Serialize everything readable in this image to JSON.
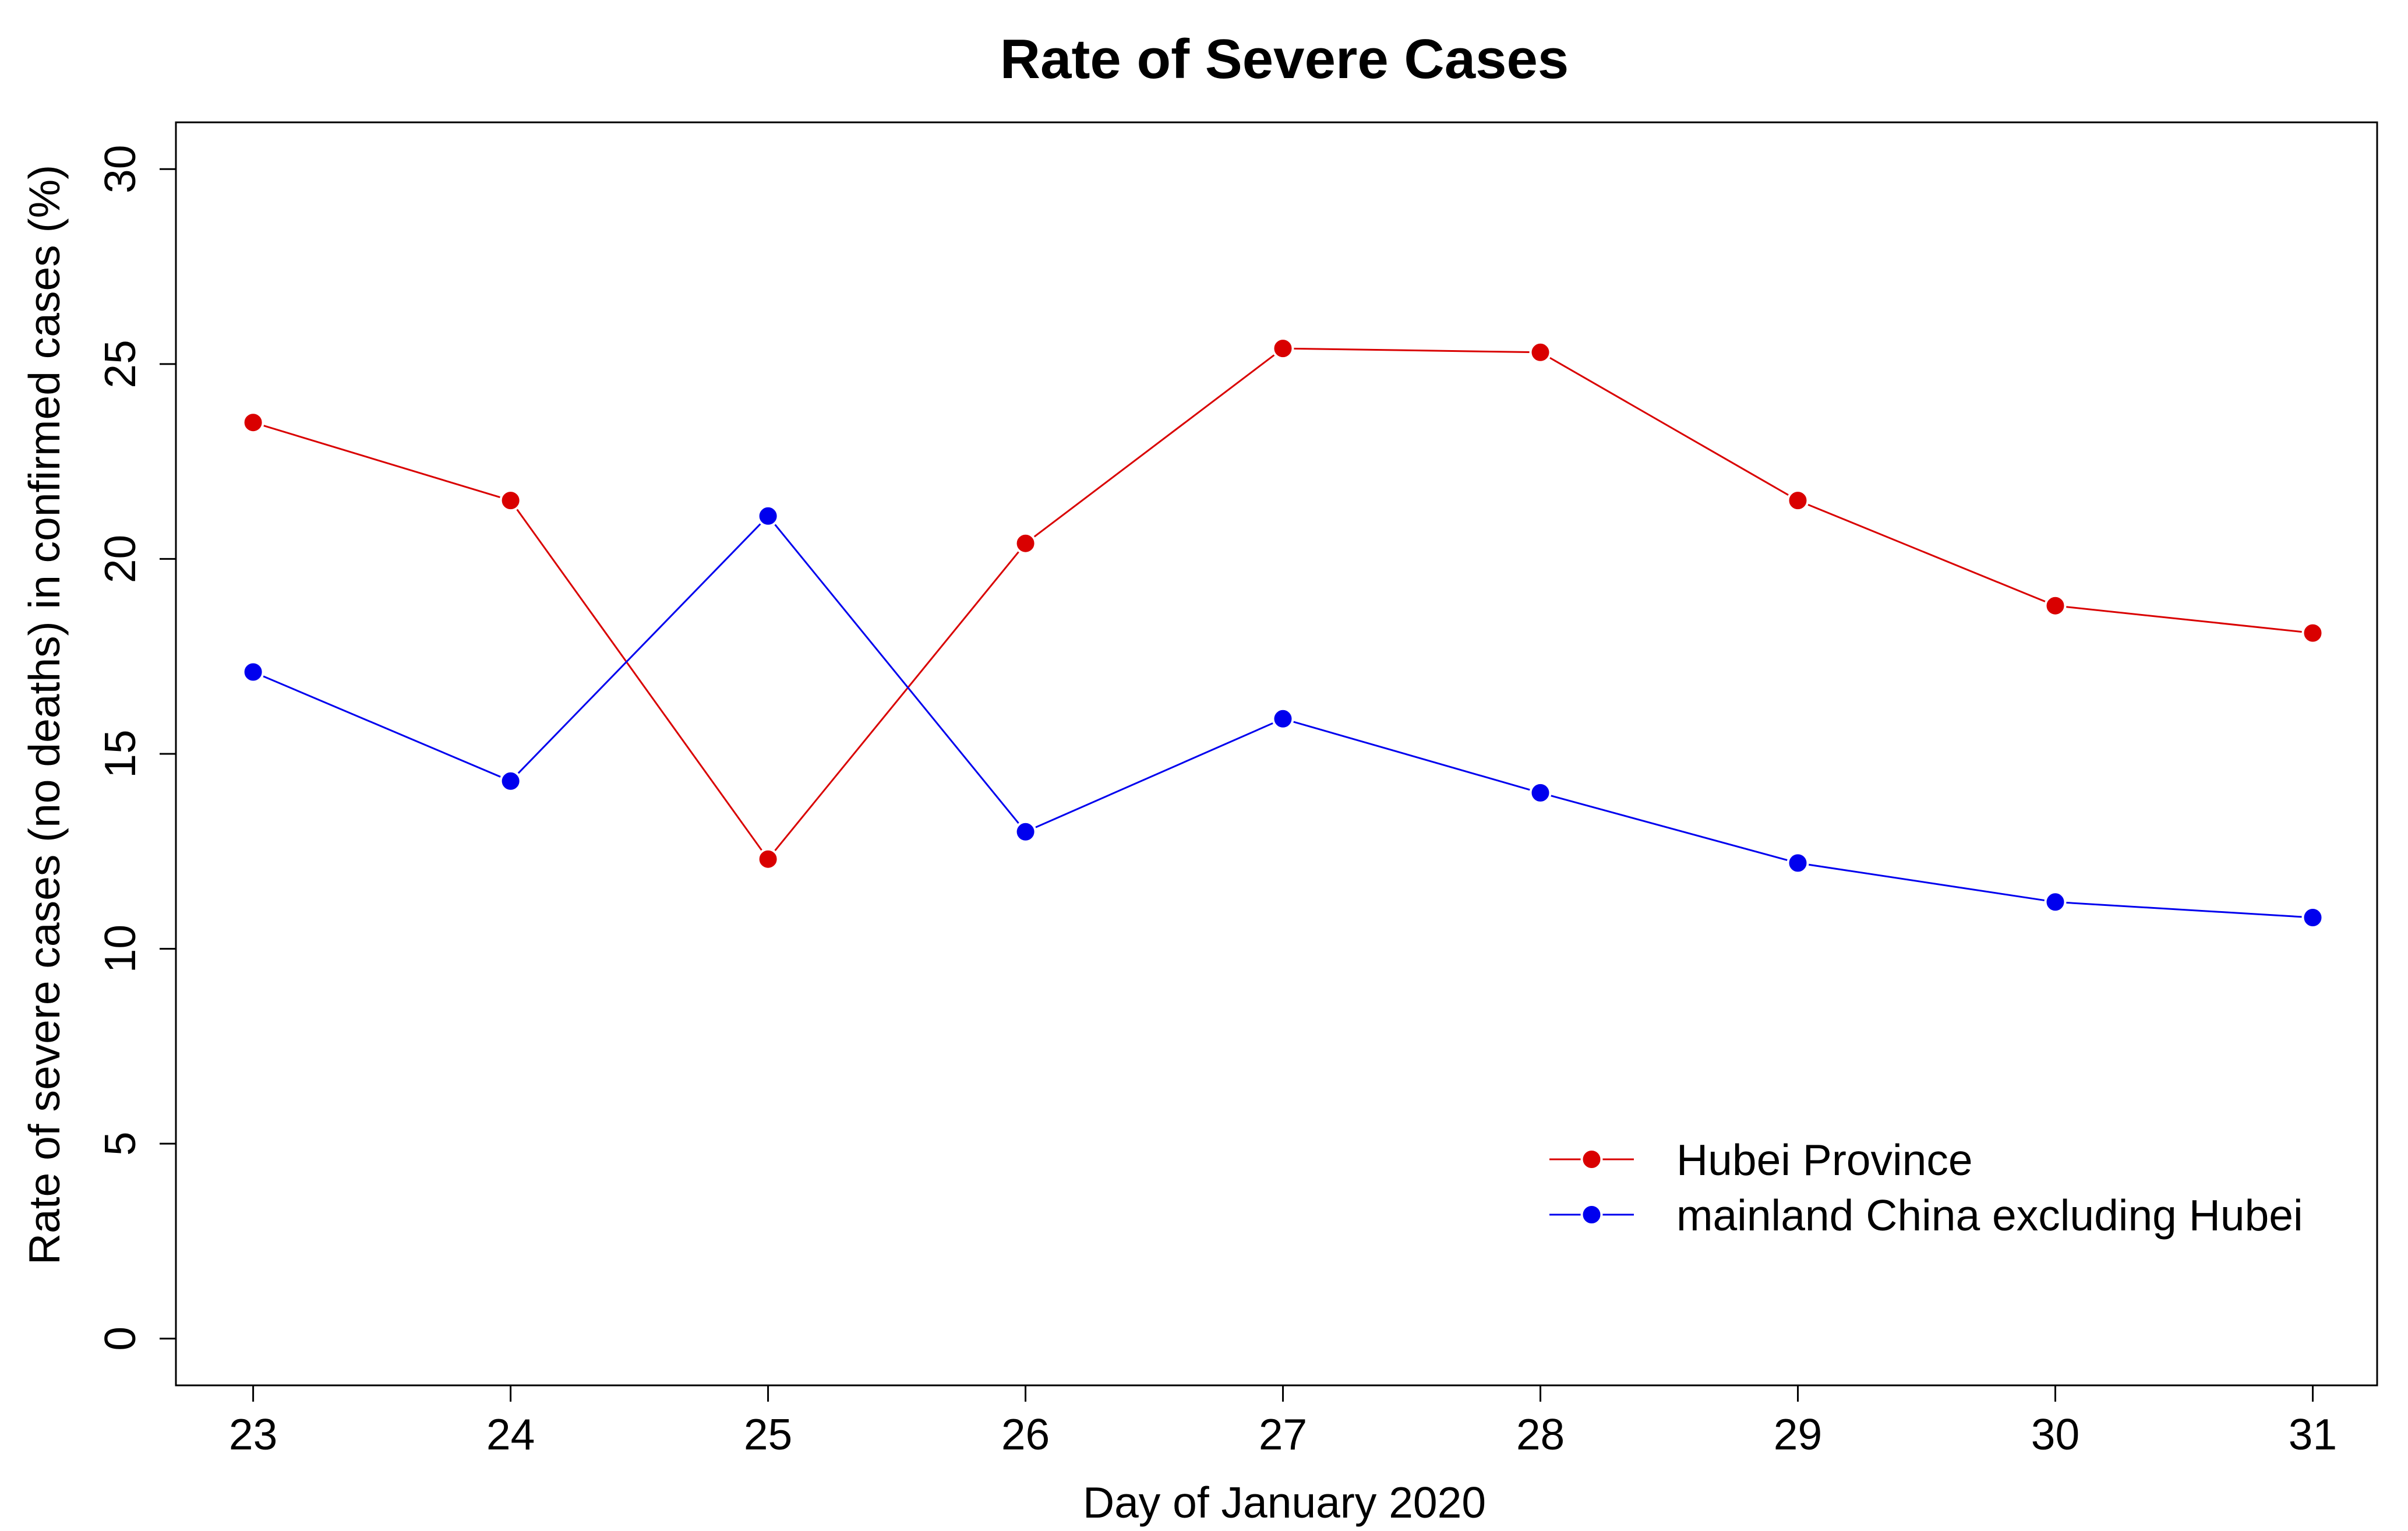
{
  "chart_data": {
    "type": "line",
    "title": "Rate of Severe Cases",
    "xlabel": "Day of January 2020",
    "ylabel": "Rate of severe cases (no deaths) in confirmed cases (%)",
    "x": [
      23,
      24,
      25,
      26,
      27,
      28,
      29,
      30,
      31
    ],
    "xlim": [
      22.7,
      31.25
    ],
    "ylim": [
      -1.2,
      31.2
    ],
    "x_ticks": [
      "23",
      "24",
      "25",
      "26",
      "27",
      "28",
      "29",
      "30",
      "31"
    ],
    "y_ticks": [
      "0",
      "5",
      "10",
      "15",
      "20",
      "25",
      "30"
    ],
    "series": [
      {
        "name": "Hubei Province",
        "color": "#d90000",
        "values": [
          23.5,
          21.5,
          12.3,
          20.4,
          25.4,
          25.3,
          21.5,
          18.8,
          18.1
        ]
      },
      {
        "name": "mainland China excluding Hubei",
        "color": "#0000ee",
        "values": [
          17.1,
          14.3,
          21.1,
          13.0,
          15.9,
          14.0,
          12.2,
          11.2,
          10.8
        ]
      }
    ],
    "grid": false,
    "legend": "bottom-right",
    "marker": "filled-circle"
  }
}
